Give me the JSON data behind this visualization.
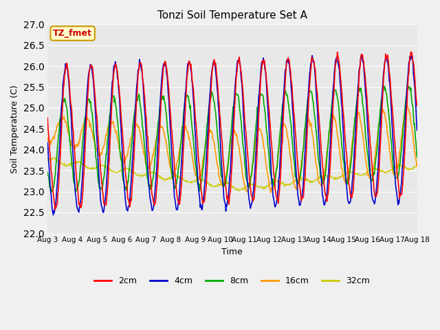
{
  "title": "Tonzi Soil Temperature Set A",
  "xlabel": "Time",
  "ylabel": "Soil Temperature (C)",
  "ylim": [
    22.0,
    27.0
  ],
  "yticks": [
    22.0,
    22.5,
    23.0,
    23.5,
    24.0,
    24.5,
    25.0,
    25.5,
    26.0,
    26.5,
    27.0
  ],
  "xtick_labels": [
    "Aug 3",
    "Aug 4",
    "Aug 5",
    "Aug 6",
    "Aug 7",
    "Aug 8",
    "Aug 9",
    "Aug 10",
    "Aug 11",
    "Aug 12",
    "Aug 13",
    "Aug 14",
    "Aug 15",
    "Aug 16",
    "Aug 17",
    "Aug 18"
  ],
  "annotation_text": "TZ_fmet",
  "annotation_color": "#cc0000",
  "annotation_bg": "#ffffcc",
  "annotation_border": "#cc9900",
  "line_colors": {
    "2cm": "#ff0000",
    "4cm": "#0000cc",
    "8cm": "#00aa00",
    "16cm": "#ff9900",
    "32cm": "#cccc00"
  },
  "legend_labels": [
    "2cm",
    "4cm",
    "8cm",
    "16cm",
    "32cm"
  ],
  "fig_bg": "#f0f0f0",
  "plot_bg": "#e8e8e8",
  "n_days": 15,
  "n_per_day": 48
}
